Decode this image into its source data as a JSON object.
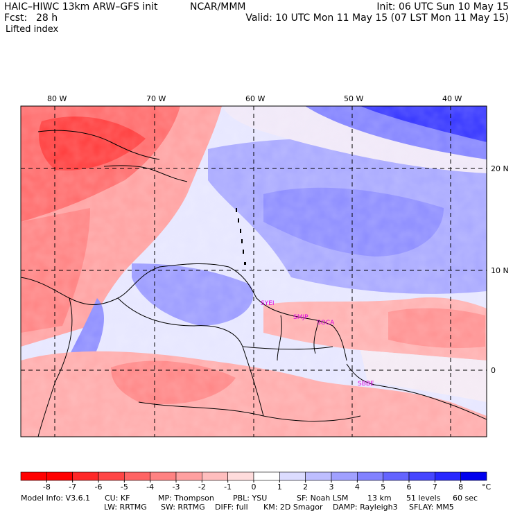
{
  "header": {
    "title": "HAIC–HIWC 13km ARW–GFS init",
    "org": "NCAR/MMM",
    "init": "Init: 06 UTC Sun 10 May 15",
    "fcst_label": "Fcst:",
    "fcst_value": "28 h",
    "valid": "Valid: 10 UTC Mon 11 May 15 (07 LST Mon 11 May 15)",
    "field": "Lifted index"
  },
  "map": {
    "lon_labels": [
      "80 W",
      "70 W",
      "60 W",
      "50 W",
      "40 W"
    ],
    "lat_labels": [
      "20 N",
      "10 N",
      "0"
    ],
    "stations": [
      "SYEI",
      "SMJP",
      "SOCA",
      "SBBE"
    ],
    "colors": {
      "neg_strong": "#ff0000",
      "neutral": "#ffffff",
      "pos_strong": "#0000ee",
      "station": "#dd00dd",
      "land_line": "#000000"
    }
  },
  "colorbar": {
    "ticks": [
      "-8",
      "-7",
      "-6",
      "-5",
      "-4",
      "-3",
      "-2",
      "-1",
      "0",
      "1",
      "2",
      "3",
      "4",
      "5",
      "6",
      "7",
      "8"
    ],
    "unit": "°C",
    "colors": [
      "#ff0000",
      "#ff2828",
      "#ff4646",
      "#ff6464",
      "#ff8282",
      "#ffa0a0",
      "#ffbebe",
      "#ffdcdc",
      "#ffffff",
      "#dcdcff",
      "#bebeff",
      "#a0a0ff",
      "#8282ff",
      "#6464ff",
      "#4646ff",
      "#2828ff",
      "#0000ee"
    ]
  },
  "footer": {
    "line1": [
      "Model Info: V3.6.1",
      "CU: KF",
      "MP: Thompson",
      "PBL: YSU",
      "SF: Noah LSM",
      "13 km",
      "51 levels",
      "60 sec"
    ],
    "line2": [
      "LW: RRTMG",
      "SW: RRTMG",
      "DIFF: full",
      "KM: 2D Smagor",
      "DAMP: Rayleigh3",
      "SFLAY: MM5"
    ]
  }
}
